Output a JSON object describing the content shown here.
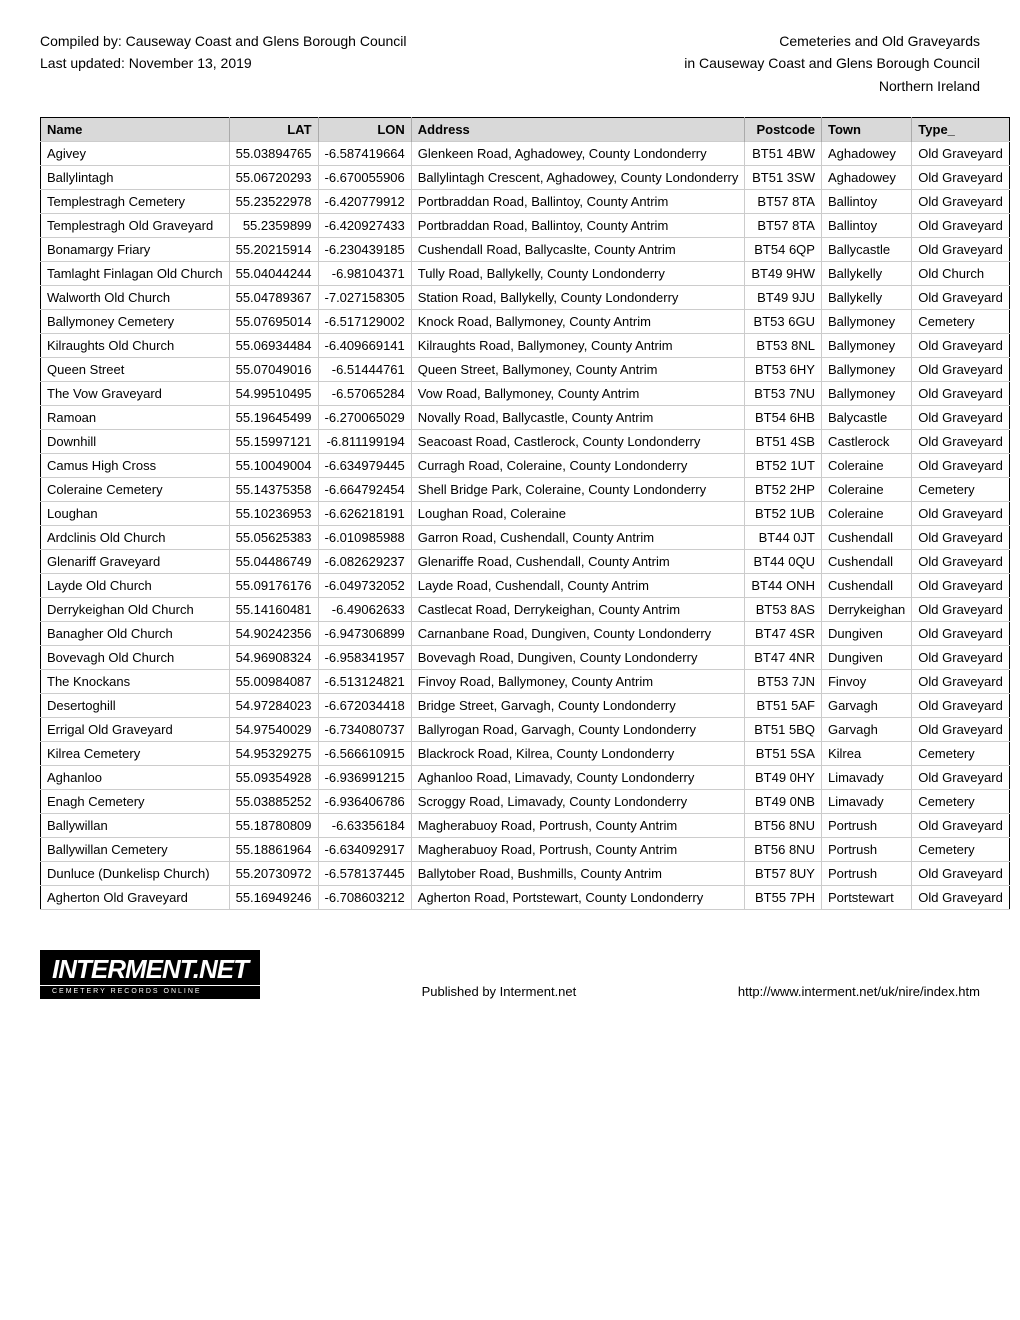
{
  "header": {
    "compiled_by": "Compiled by: Causeway Coast and Glens Borough Council",
    "last_updated": "Last updated: November 13, 2019",
    "title_line1": "Cemeteries and Old Graveyards",
    "title_line2": "in Causeway Coast and Glens Borough Council",
    "title_line3": "Northern Ireland"
  },
  "columns": [
    "Name",
    "LAT",
    "LON",
    "Address",
    "Postcode",
    "Town",
    "Type_"
  ],
  "rows": [
    [
      "Agivey",
      "55.03894765",
      "-6.587419664",
      "Glenkeen Road, Aghadowey, County Londonderry",
      "BT51 4BW",
      "Aghadowey",
      "Old Graveyard"
    ],
    [
      "Ballylintagh",
      "55.06720293",
      "-6.670055906",
      "Ballylintagh Crescent, Aghadowey, County Londonderry",
      "BT51 3SW",
      "Aghadowey",
      "Old Graveyard"
    ],
    [
      "Templestragh Cemetery",
      "55.23522978",
      "-6.420779912",
      "Portbraddan Road, Ballintoy, County Antrim",
      "BT57 8TA",
      "Ballintoy",
      "Old Graveyard"
    ],
    [
      "Templestragh Old Graveyard",
      "55.2359899",
      "-6.420927433",
      "Portbraddan Road, Ballintoy, County Antrim",
      "BT57 8TA",
      "Ballintoy",
      "Old Graveyard"
    ],
    [
      "Bonamargy Friary",
      "55.20215914",
      "-6.230439185",
      "Cushendall Road, Ballycaslte, County Antrim",
      "BT54 6QP",
      "Ballycastle",
      "Old Graveyard"
    ],
    [
      "Tamlaght Finlagan Old Church",
      "55.04044244",
      "-6.98104371",
      "Tully Road, Ballykelly, County Londonderry",
      "BT49 9HW",
      "Ballykelly",
      "Old Church"
    ],
    [
      "Walworth Old Church",
      "55.04789367",
      "-7.027158305",
      "Station Road, Ballykelly, County Londonderry",
      "BT49 9JU",
      "Ballykelly",
      "Old Graveyard"
    ],
    [
      "Ballymoney Cemetery",
      "55.07695014",
      "-6.517129002",
      "Knock Road, Ballymoney, County Antrim",
      "BT53 6GU",
      "Ballymoney",
      "Cemetery"
    ],
    [
      "Kilraughts Old Church",
      "55.06934484",
      "-6.409669141",
      "Kilraughts Road, Ballymoney, County Antrim",
      "BT53 8NL",
      "Ballymoney",
      "Old Graveyard"
    ],
    [
      "Queen Street",
      "55.07049016",
      "-6.51444761",
      "Queen Street, Ballymoney, County Antrim",
      "BT53 6HY",
      "Ballymoney",
      "Old Graveyard"
    ],
    [
      "The Vow Graveyard",
      "54.99510495",
      "-6.57065284",
      "Vow Road, Ballymoney, County Antrim",
      "BT53 7NU",
      "Ballymoney",
      "Old Graveyard"
    ],
    [
      "Ramoan",
      "55.19645499",
      "-6.270065029",
      "Novally Road, Ballycastle, County Antrim",
      "BT54 6HB",
      "Balycastle",
      "Old Graveyard"
    ],
    [
      "Downhill",
      "55.15997121",
      "-6.811199194",
      "Seacoast Road, Castlerock, County Londonderry",
      "BT51 4SB",
      "Castlerock",
      "Old Graveyard"
    ],
    [
      "Camus High Cross",
      "55.10049004",
      "-6.634979445",
      "Curragh Road, Coleraine, County Londonderry",
      "BT52 1UT",
      "Coleraine",
      "Old Graveyard"
    ],
    [
      "Coleraine Cemetery",
      "55.14375358",
      "-6.664792454",
      "Shell Bridge Park, Coleraine, County Londonderry",
      "BT52 2HP",
      "Coleraine",
      "Cemetery"
    ],
    [
      "Loughan",
      "55.10236953",
      "-6.626218191",
      "Loughan Road, Coleraine",
      "BT52 1UB",
      "Coleraine",
      "Old Graveyard"
    ],
    [
      "Ardclinis Old Church",
      "55.05625383",
      "-6.010985988",
      "Garron Road, Cushendall, County Antrim",
      "BT44 0JT",
      "Cushendall",
      "Old Graveyard"
    ],
    [
      "Glenariff Graveyard",
      "55.04486749",
      "-6.082629237",
      "Glenariffe Road, Cushendall, County Antrim",
      "BT44 0QU",
      "Cushendall",
      "Old Graveyard"
    ],
    [
      "Layde Old Church",
      "55.09176176",
      "-6.049732052",
      "Layde Road, Cushendall, County Antrim",
      "BT44 ONH",
      "Cushendall",
      "Old Graveyard"
    ],
    [
      "Derrykeighan Old Church",
      "55.14160481",
      "-6.49062633",
      "Castlecat Road, Derrykeighan, County Antrim",
      "BT53 8AS",
      "Derrykeighan",
      "Old Graveyard"
    ],
    [
      "Banagher Old Church",
      "54.90242356",
      "-6.947306899",
      "Carnanbane Road, Dungiven, County Londonderry",
      "BT47 4SR",
      "Dungiven",
      "Old Graveyard"
    ],
    [
      "Bovevagh Old Church",
      "54.96908324",
      "-6.958341957",
      "Bovevagh Road, Dungiven, County Londonderry",
      "BT47 4NR",
      "Dungiven",
      "Old Graveyard"
    ],
    [
      "The Knockans",
      "55.00984087",
      "-6.513124821",
      "Finvoy Road, Ballymoney, County Antrim",
      "BT53 7JN",
      "Finvoy",
      "Old Graveyard"
    ],
    [
      "Desertoghill",
      "54.97284023",
      "-6.672034418",
      "Bridge Street, Garvagh, County Londonderry",
      "BT51 5AF",
      "Garvagh",
      "Old Graveyard"
    ],
    [
      "Errigal Old Graveyard",
      "54.97540029",
      "-6.734080737",
      "Ballyrogan Road, Garvagh, County Londonderry",
      "BT51 5BQ",
      "Garvagh",
      "Old Graveyard"
    ],
    [
      "Kilrea Cemetery",
      "54.95329275",
      "-6.566610915",
      "Blackrock Road, Kilrea, County Londonderry",
      "BT51 5SA",
      "Kilrea",
      "Cemetery"
    ],
    [
      "Aghanloo",
      "55.09354928",
      "-6.936991215",
      "Aghanloo Road, Limavady, County Londonderry",
      "BT49 0HY",
      "Limavady",
      "Old Graveyard"
    ],
    [
      "Enagh Cemetery",
      "55.03885252",
      "-6.936406786",
      "Scroggy Road, Limavady, County Londonderry",
      "BT49 0NB",
      "Limavady",
      "Cemetery"
    ],
    [
      "Ballywillan",
      "55.18780809",
      "-6.63356184",
      "Magherabuoy Road, Portrush, County Antrim",
      "BT56 8NU",
      "Portrush",
      "Old Graveyard"
    ],
    [
      "Ballywillan Cemetery",
      "55.18861964",
      "-6.634092917",
      "Magherabuoy Road, Portrush, County Antrim",
      "BT56 8NU",
      "Portrush",
      "Cemetery"
    ],
    [
      "Dunluce (Dunkelisp Church)",
      "55.20730972",
      "-6.578137445",
      "Ballytober Road, Bushmills, County Antrim",
      "BT57 8UY",
      "Portrush",
      "Old Graveyard"
    ],
    [
      "Agherton Old Graveyard",
      "55.16949246",
      "-6.708603212",
      "Agherton Road, Portstewart, County Londonderry",
      "BT55 7PH",
      "Portstewart",
      "Old Graveyard"
    ]
  ],
  "footer": {
    "logo_main": "INTERMENT.NET",
    "logo_sub": "CEMETERY RECORDS ONLINE",
    "published": "Published by Interment.net",
    "url": "http://www.interment.net/uk/nire/index.htm"
  }
}
